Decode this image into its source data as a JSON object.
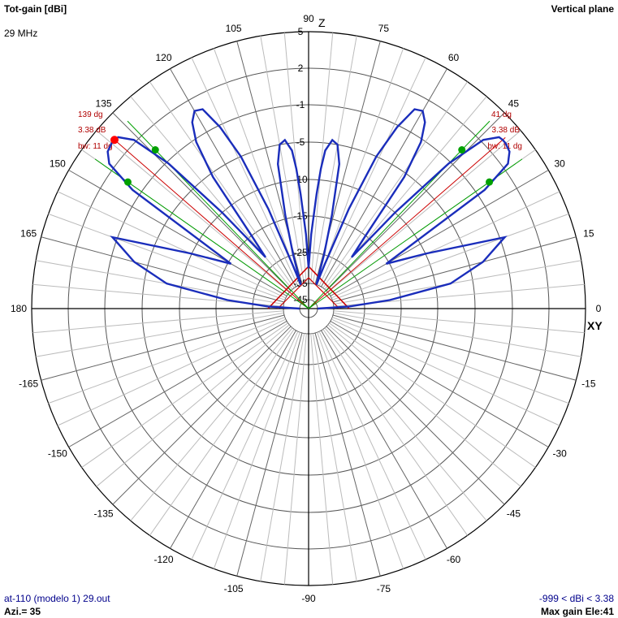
{
  "header": {
    "title": "Tot-gain [dBi]",
    "frequency": "29 MHz",
    "plane": "Vertical plane"
  },
  "footer": {
    "filename": "at-110 (modelo 1) 29.out",
    "azimuth": "Azi.= 35",
    "range": "-999 < dBi < 3.38",
    "max_gain": "Max gain Ele:41"
  },
  "axes": {
    "z_label": "Z",
    "xy_label": "XY",
    "angle_labels": [
      "90",
      "75",
      "60",
      "45",
      "30",
      "15",
      "0",
      "-15",
      "-30",
      "-45",
      "-60",
      "-75",
      "-90",
      "-105",
      "-120",
      "-135",
      "-150",
      "-165",
      "180",
      "165",
      "150",
      "135",
      "120",
      "105"
    ],
    "gain_labels": [
      "5",
      "2",
      "-1",
      "-5",
      "-10",
      "-15",
      "-25",
      "-35",
      "-45"
    ]
  },
  "annotations": {
    "left": {
      "angle": "139 dg",
      "gain": "3.38 dB",
      "bw": "bw: 11 dg"
    },
    "right": {
      "angle": "41 dg",
      "gain": "3.38 dB",
      "bw": "bw: 11 dg"
    }
  },
  "chart_data": {
    "type": "polar",
    "unit": "dBi",
    "elevation_deg": [
      0,
      3,
      6,
      10,
      15,
      20,
      25,
      30,
      34,
      36,
      38,
      40,
      41,
      42,
      44,
      46,
      48,
      50,
      52,
      54,
      56,
      58,
      60,
      62,
      64,
      66,
      68,
      70,
      72,
      74,
      76,
      78,
      80,
      82,
      84,
      85,
      86,
      88,
      90
    ],
    "gain_dbi": [
      -45,
      -30,
      -18,
      -8,
      -3.5,
      -0.6,
      -9.8,
      -15.8,
      -0.3,
      2.5,
      3.2,
      3.38,
      3.38,
      3.3,
      2.2,
      -1.2,
      -10,
      -22,
      -15,
      -5.5,
      -1.3,
      0.3,
      1,
      0.8,
      -1.2,
      -5,
      -13,
      -28,
      -35,
      -25,
      -14.5,
      -7.5,
      -5,
      -4.6,
      -6,
      -8.5,
      -12,
      -20,
      -30
    ],
    "symmetric_about_deg": 90,
    "max_gain_dbi": 3.38,
    "max_gain_elevation_deg": [
      41,
      139
    ],
    "beamwidth_deg": 11,
    "half_power_points_deg": [
      35,
      46,
      134,
      145
    ],
    "colors": {
      "pattern": "#1a2dbb",
      "grid": "#555555",
      "marker_max": "#ff0000",
      "marker_hp": "#00a000",
      "annotation": "#b00000"
    }
  }
}
